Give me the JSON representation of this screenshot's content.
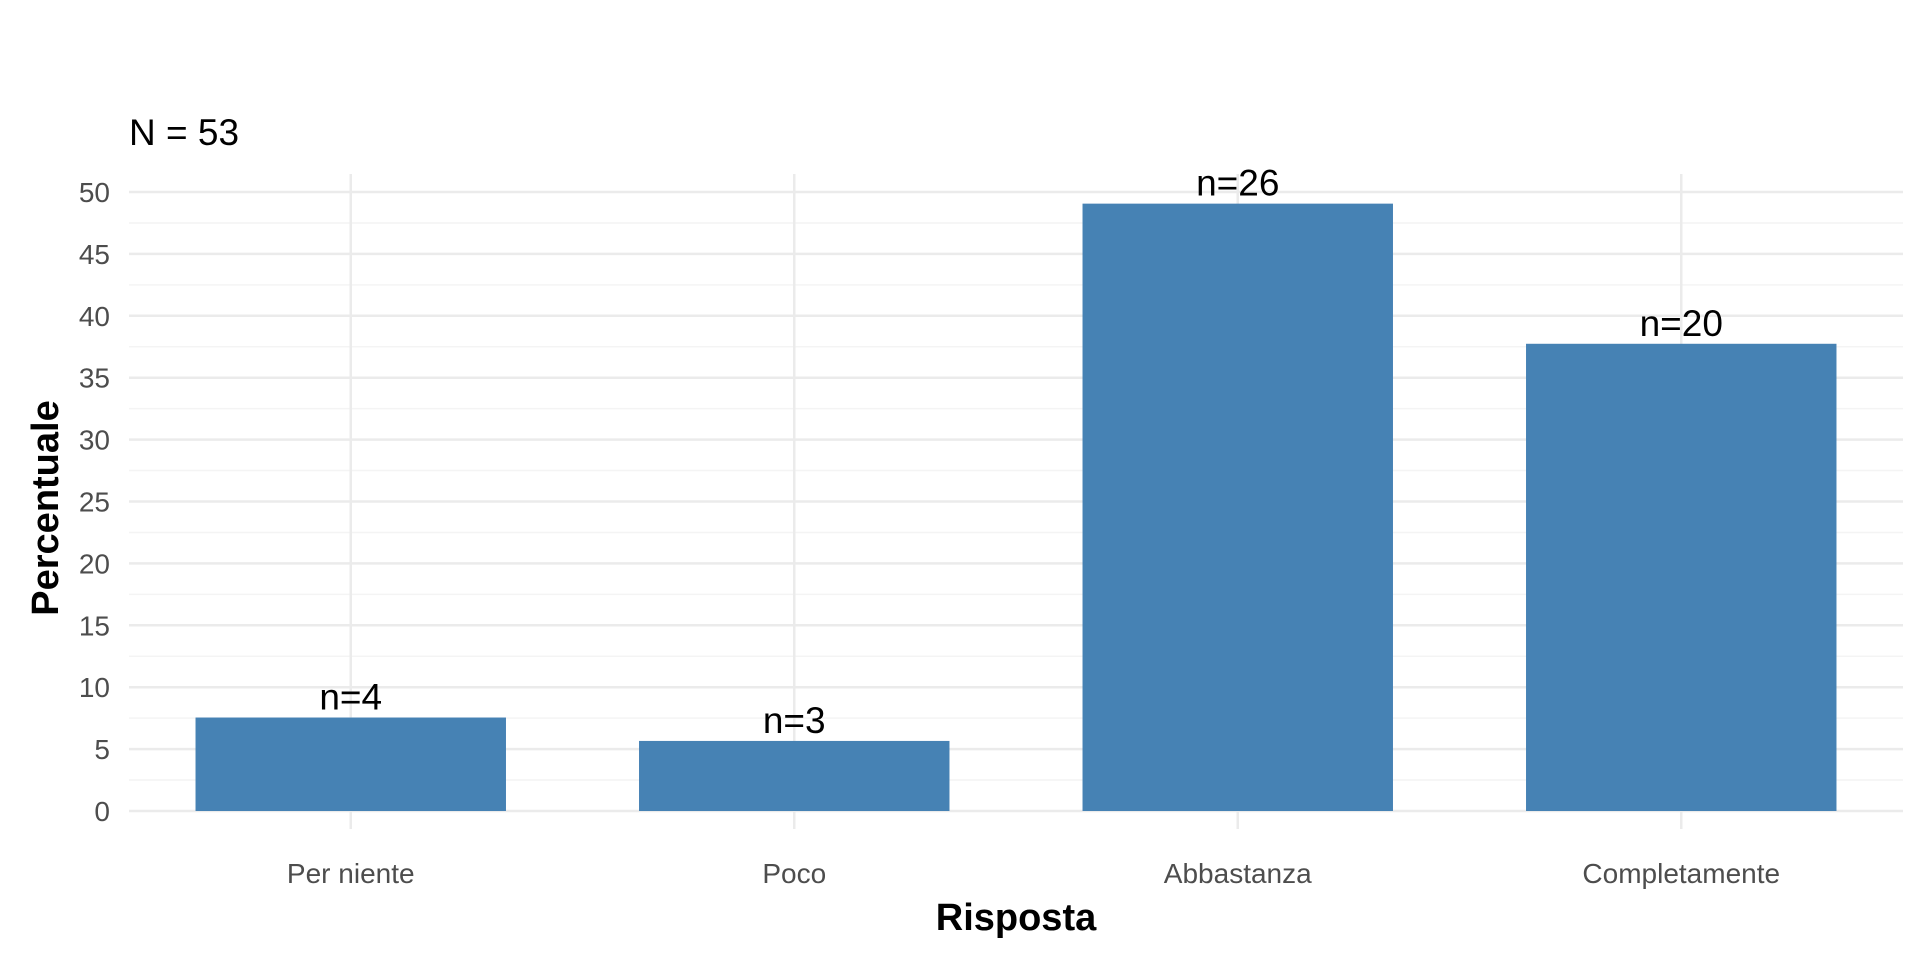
{
  "chart_data": {
    "type": "bar",
    "subtitle": "N = 53",
    "xlabel": "Risposta",
    "ylabel": "Percentuale",
    "categories": [
      "Per niente",
      "Poco",
      "Abbastanza",
      "Completamente"
    ],
    "values": [
      7.55,
      5.66,
      49.06,
      37.74
    ],
    "data_labels": [
      "n=4",
      "n=3",
      "n=26",
      "n=20"
    ],
    "ylim": [
      0,
      50
    ],
    "yticks": [
      0,
      5,
      10,
      15,
      20,
      25,
      30,
      35,
      40,
      45,
      50
    ],
    "grid": true,
    "legend": "none",
    "colors": {
      "bar": "#4682B4",
      "grid_major": "#ebebeb",
      "grid_minor": "#f4f4f4"
    }
  }
}
